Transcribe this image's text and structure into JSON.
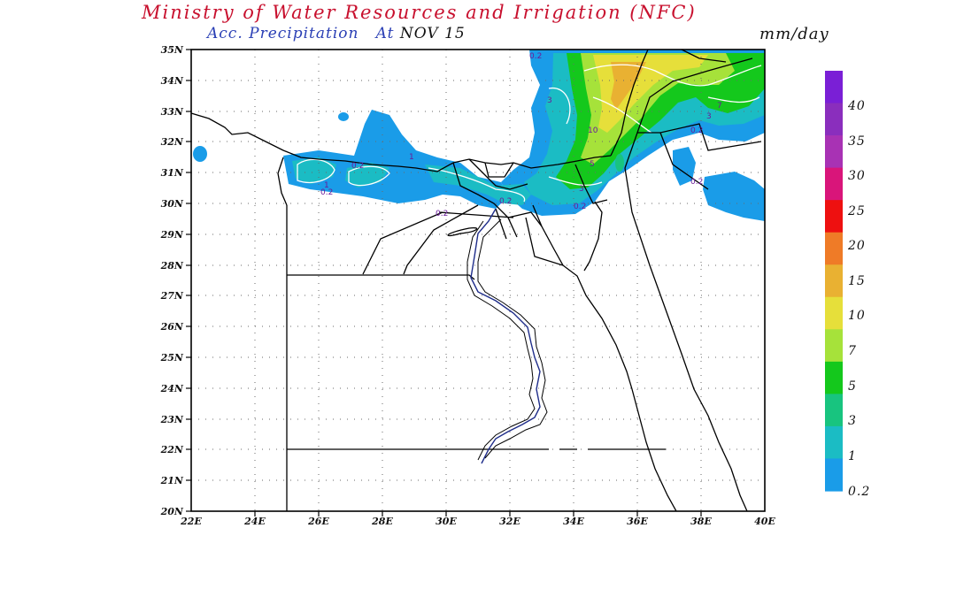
{
  "header": {
    "title": "Ministry of Water Resources and Irrigation (NFC)",
    "subtitle_label": "Acc. Precipitation",
    "subtitle_at": "At",
    "subtitle_date": "NOV 15",
    "units": "mm/day"
  },
  "map": {
    "lat_labels": [
      "35N",
      "34N",
      "33N",
      "32N",
      "31N",
      "30N",
      "29N",
      "28N",
      "27N",
      "26N",
      "25N",
      "24N",
      "23N",
      "22N",
      "21N",
      "20N"
    ],
    "lon_labels": [
      "22E",
      "24E",
      "26E",
      "28E",
      "30E",
      "32E",
      "34E",
      "36E",
      "38E",
      "40E"
    ],
    "contour_labels": [
      "0.2",
      "0.2",
      "1",
      "0.2",
      "0.2",
      "0.2",
      "0.2",
      "1",
      "3",
      "10",
      "3",
      "0.2",
      "0.2",
      "3",
      "7",
      "5"
    ]
  },
  "colorbar": {
    "labels": [
      "40",
      "35",
      "30",
      "25",
      "20",
      "15",
      "10",
      "7",
      "5",
      "3",
      "1",
      "0.2"
    ],
    "colors": [
      "#7a1fd6",
      "#8a2ebd",
      "#a832b4",
      "#d9157a",
      "#ee1010",
      "#ef7b27",
      "#e9b132",
      "#e6df3a",
      "#a6e23a",
      "#14c81c",
      "#18c47f",
      "#1bbcc4",
      "#1a9ce8"
    ]
  }
}
